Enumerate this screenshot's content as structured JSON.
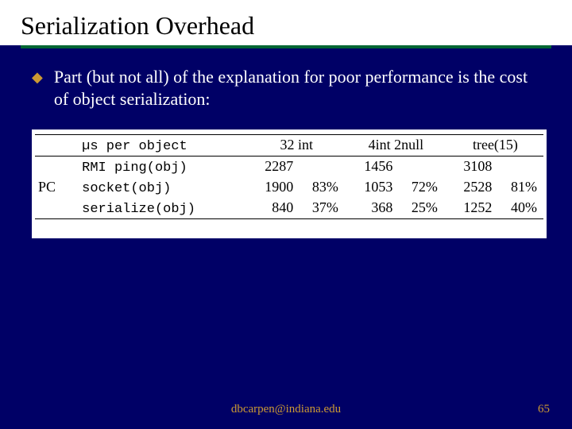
{
  "colors": {
    "background": "#000066",
    "header_bg": "#ffffff",
    "title_text": "#000000",
    "rule": "#006633",
    "body_text": "#ffffff",
    "accent": "#cc9933",
    "table_bg": "#ffffff",
    "table_text": "#000000",
    "table_border": "#000000"
  },
  "typography": {
    "title_fontsize": 32,
    "body_fontsize": 22,
    "table_fontsize": 18,
    "footer_fontsize": 15,
    "font_family": "Times New Roman"
  },
  "title": "Serialization Overhead",
  "bullet_glyph": "◆",
  "bullet": "Part (but not all) of the explanation for poor performance is the cost of object serialization:",
  "table": {
    "row_group_label": "PC",
    "columns": {
      "metric": "µs per object",
      "c1": "32 int",
      "c2": "4int 2null",
      "c3": "tree(15)"
    },
    "rows": [
      {
        "label": "RMI ping(obj)",
        "c1_val": "2287",
        "c1_pct": "",
        "c2_val": "1456",
        "c2_pct": "",
        "c3_val": "3108",
        "c3_pct": ""
      },
      {
        "label": "socket(obj)",
        "c1_val": "1900",
        "c1_pct": "83%",
        "c2_val": "1053",
        "c2_pct": "72%",
        "c3_val": "2528",
        "c3_pct": "81%"
      },
      {
        "label": "serialize(obj)",
        "c1_val": "840",
        "c1_pct": "37%",
        "c2_val": "368",
        "c2_pct": "25%",
        "c3_val": "1252",
        "c3_pct": "40%"
      }
    ]
  },
  "footer": "dbcarpen@indiana.edu",
  "page_number": "65"
}
